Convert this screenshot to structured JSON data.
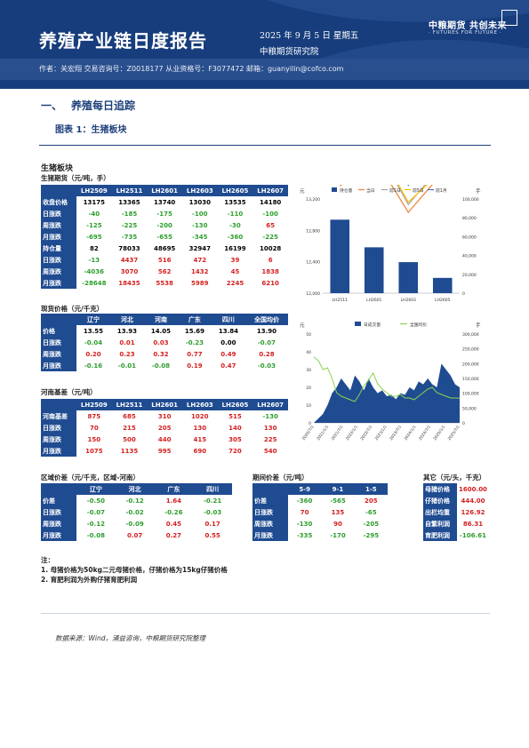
{
  "header": {
    "title": "养殖产业链日度报告",
    "date": "2025 年 9 月 5 日 星期五",
    "institute": "中粮期货研究院",
    "logo_cn": "中粮期货  共创未来",
    "logo_en": "· FUTURES FOR FUTURE ·",
    "authors": "作者：关宏翔    交易咨询号：Z0018177  从业资格号：F3077472    邮箱：guanyilin@cofco.com"
  },
  "section": {
    "number": "一、",
    "title": "养殖每日追踪"
  },
  "figure_title": "图表 1：生猪板块",
  "panel_title": "生猪板块",
  "futures": {
    "subtitle": "生猪期货（元/吨，手）",
    "columns": [
      "LH2509",
      "LH2511",
      "LH2601",
      "LH2603",
      "LH2605",
      "LH2607"
    ],
    "rows": [
      {
        "label": "收盘价格",
        "values": [
          "13175",
          "13365",
          "13740",
          "13030",
          "13535",
          "14180"
        ],
        "colors": [
          "",
          "",
          "",
          "",
          "",
          ""
        ]
      },
      {
        "label": "日涨跌",
        "values": [
          "-40",
          "-185",
          "-175",
          "-100",
          "-110",
          "-100"
        ],
        "colors": [
          "g",
          "g",
          "g",
          "g",
          "g",
          "g"
        ]
      },
      {
        "label": "周涨跌",
        "values": [
          "-125",
          "-225",
          "-200",
          "-130",
          "-30",
          "65"
        ],
        "colors": [
          "g",
          "g",
          "g",
          "g",
          "g",
          "r"
        ]
      },
      {
        "label": "月涨跌",
        "values": [
          "-695",
          "-735",
          "-655",
          "-345",
          "-360",
          "-225"
        ],
        "colors": [
          "g",
          "g",
          "g",
          "g",
          "g",
          "g"
        ]
      },
      {
        "label": "持仓量",
        "values": [
          "82",
          "78033",
          "48695",
          "32947",
          "16199",
          "10028"
        ],
        "colors": [
          "",
          "",
          "",
          "",
          "",
          ""
        ]
      },
      {
        "label": "日涨跌",
        "values": [
          "-13",
          "4437",
          "516",
          "472",
          "39",
          "6"
        ],
        "colors": [
          "g",
          "r",
          "r",
          "r",
          "r",
          "r"
        ]
      },
      {
        "label": "周涨跌",
        "values": [
          "-4036",
          "3070",
          "562",
          "1432",
          "45",
          "1838"
        ],
        "colors": [
          "g",
          "r",
          "r",
          "r",
          "r",
          "r"
        ]
      },
      {
        "label": "月涨跌",
        "values": [
          "-28648",
          "18435",
          "5538",
          "5989",
          "2245",
          "6210"
        ],
        "colors": [
          "g",
          "r",
          "r",
          "r",
          "r",
          "r"
        ]
      }
    ]
  },
  "spot": {
    "subtitle": "现货价格（元/千克）",
    "columns": [
      "辽宁",
      "河北",
      "河南",
      "广东",
      "四川",
      "全国均价"
    ],
    "rows": [
      {
        "label": "价格",
        "values": [
          "13.55",
          "13.93",
          "14.05",
          "15.69",
          "13.84",
          "13.90"
        ],
        "colors": [
          "",
          "",
          "",
          "",
          "",
          ""
        ]
      },
      {
        "label": "日涨跌",
        "values": [
          "-0.04",
          "0.01",
          "0.03",
          "-0.23",
          "0.00",
          "-0.07"
        ],
        "colors": [
          "g",
          "r",
          "r",
          "g",
          "",
          "g"
        ]
      },
      {
        "label": "周涨跌",
        "values": [
          "0.20",
          "0.23",
          "0.32",
          "0.77",
          "0.49",
          "0.28"
        ],
        "colors": [
          "r",
          "r",
          "r",
          "r",
          "r",
          "r"
        ]
      },
      {
        "label": "月涨跌",
        "values": [
          "-0.16",
          "-0.01",
          "-0.08",
          "0.19",
          "0.47",
          "-0.03"
        ],
        "colors": [
          "g",
          "g",
          "g",
          "r",
          "r",
          "g"
        ]
      }
    ]
  },
  "basis": {
    "subtitle": "河南基差（元/吨）",
    "columns": [
      "LH2509",
      "LH2511",
      "LH2601",
      "LH2603",
      "LH2605",
      "LH2607"
    ],
    "rows": [
      {
        "label": "河南基差",
        "values": [
          "875",
          "685",
          "310",
          "1020",
          "515",
          "-130"
        ],
        "colors": [
          "r",
          "r",
          "r",
          "r",
          "r",
          "g"
        ]
      },
      {
        "label": "日涨跌",
        "values": [
          "70",
          "215",
          "205",
          "130",
          "140",
          "130"
        ],
        "colors": [
          "r",
          "r",
          "r",
          "r",
          "r",
          "r"
        ]
      },
      {
        "label": "周涨跌",
        "values": [
          "150",
          "500",
          "440",
          "415",
          "305",
          "225"
        ],
        "colors": [
          "r",
          "r",
          "r",
          "r",
          "r",
          "r"
        ]
      },
      {
        "label": "月涨跌",
        "values": [
          "1075",
          "1135",
          "995",
          "690",
          "720",
          "540"
        ],
        "colors": [
          "r",
          "r",
          "r",
          "r",
          "r",
          "r"
        ]
      }
    ]
  },
  "regional": {
    "subtitle": "区域价差（元/千克，区域-河南）",
    "columns": [
      "辽宁",
      "河北",
      "广东",
      "四川"
    ],
    "rows": [
      {
        "label": "价差",
        "values": [
          "-0.50",
          "-0.12",
          "1.64",
          "-0.21"
        ],
        "colors": [
          "g",
          "g",
          "r",
          "g"
        ]
      },
      {
        "label": "日涨跌",
        "values": [
          "-0.07",
          "-0.02",
          "-0.26",
          "-0.03"
        ],
        "colors": [
          "g",
          "g",
          "g",
          "g"
        ]
      },
      {
        "label": "周涨跌",
        "values": [
          "-0.12",
          "-0.09",
          "0.45",
          "0.17"
        ],
        "colors": [
          "g",
          "g",
          "r",
          "r"
        ]
      },
      {
        "label": "月涨跌",
        "values": [
          "-0.08",
          "0.07",
          "0.27",
          "0.55"
        ],
        "colors": [
          "g",
          "r",
          "r",
          "r"
        ]
      }
    ]
  },
  "spread": {
    "subtitle": "期间价差（元/吨）",
    "columns": [
      "5-9",
      "9-1",
      "1-5"
    ],
    "rows": [
      {
        "label": "价差",
        "values": [
          "-360",
          "-565",
          "205"
        ],
        "colors": [
          "g",
          "g",
          "r"
        ]
      },
      {
        "label": "日涨跌",
        "values": [
          "70",
          "135",
          "-65"
        ],
        "colors": [
          "r",
          "r",
          "g"
        ]
      },
      {
        "label": "周涨跌",
        "values": [
          "-130",
          "90",
          "-205"
        ],
        "colors": [
          "g",
          "r",
          "g"
        ]
      },
      {
        "label": "月涨跌",
        "values": [
          "-335",
          "-170",
          "-295"
        ],
        "colors": [
          "g",
          "g",
          "g"
        ]
      }
    ]
  },
  "other": {
    "subtitle": "其它（元/头，千克）",
    "rows": [
      {
        "label": "母猪价格",
        "value": "1600.00",
        "color": "r"
      },
      {
        "label": "仔猪价格",
        "value": "444.00",
        "color": "r"
      },
      {
        "label": "出栏均重",
        "value": "126.92",
        "color": "r"
      },
      {
        "label": "自繁利润",
        "value": "86.31",
        "color": "r"
      },
      {
        "label": "育肥利润",
        "value": "-106.61",
        "color": "g"
      }
    ]
  },
  "notes": {
    "title": "注：",
    "lines": [
      "1. 母猪价格为50kg二元母猪价格，仔猪价格为15kg仔猪价格",
      "2. 育肥利润为外购仔猪育肥利润"
    ]
  },
  "source": "数据来源：Wind，涌益咨询，中粮期货研究院整理",
  "colors": {
    "navy": "#1f4b91",
    "red": "#d62020",
    "green": "#2c9e2c"
  },
  "chart_data": [
    {
      "type": "bar",
      "title": "",
      "left_axis_label": "元",
      "right_axis_label": "手",
      "categories": [
        "LH2511",
        "LH2601",
        "LH2603",
        "LH2605"
      ],
      "ylim": [
        12000,
        13200
      ],
      "y2lim": [
        0,
        100000
      ],
      "y_ticks": [
        "12,000",
        "12,400",
        "12,800",
        "13,200"
      ],
      "y2_ticks": [
        "0",
        "20,000",
        "40,000",
        "60,000",
        "80,000",
        "100,000"
      ],
      "legend": [
        "持仓量",
        "当日",
        "前1日",
        "前5日",
        "前1月"
      ],
      "legend_position": "top",
      "series": [
        {
          "name": "持仓量",
          "kind": "bar",
          "axis": "right",
          "values": [
            78033,
            48695,
            32947,
            16199
          ]
        },
        {
          "name": "当日",
          "kind": "line",
          "values": [
            13365,
            13740,
            13030,
            13535
          ]
        },
        {
          "name": "前1日",
          "kind": "line",
          "values": [
            13550,
            13915,
            13130,
            13645
          ]
        },
        {
          "name": "前5日",
          "kind": "line",
          "values": [
            13590,
            13940,
            13160,
            13565
          ]
        },
        {
          "name": "前1月",
          "kind": "line",
          "values": [
            14100,
            14395,
            13375,
            13895
          ]
        }
      ],
      "colors": {
        "持仓量": "#1f4b91",
        "当日": "#ed7d31",
        "前1日": "#a5a5a5",
        "前5日": "#ffc000",
        "前1月": "#4472c4"
      }
    },
    {
      "type": "area",
      "title": "",
      "left_axis_label": "元",
      "right_axis_label": "手",
      "legend": [
        "日成交量",
        "全国均价"
      ],
      "legend_position": "top",
      "ylim": [
        0,
        50
      ],
      "y_ticks": [
        "0",
        "10",
        "20",
        "30",
        "40",
        "50"
      ],
      "y2lim": [
        0,
        300000
      ],
      "y2_ticks": [
        "0",
        "50,000",
        "100,000",
        "150,000",
        "200,000",
        "250,000",
        "300,000"
      ],
      "x_ticks": [
        "2020/7/1",
        "2021/1/1",
        "2021/7/1",
        "2022/1/1",
        "2022/7/1",
        "2023/1/1",
        "2023/7/1",
        "2024/1/1",
        "2024/7/1",
        "2025/1/1",
        "2025/7/1"
      ],
      "series": [
        {
          "name": "全国均价",
          "kind": "line",
          "values": [
            37,
            35,
            30,
            31,
            25,
            17,
            15,
            14,
            13,
            12,
            16,
            21,
            24,
            28,
            22,
            19,
            17,
            15,
            15,
            16,
            14,
            14,
            13,
            15,
            17,
            19,
            20,
            17,
            16,
            15,
            14,
            14,
            13.9
          ]
        },
        {
          "name": "日成交量",
          "kind": "area",
          "axis": "right",
          "values": [
            0,
            15000,
            30000,
            60000,
            100000,
            120000,
            150000,
            130000,
            110000,
            160000,
            140000,
            110000,
            150000,
            120000,
            100000,
            110000,
            90000,
            95000,
            80000,
            100000,
            95000,
            120000,
            110000,
            140000,
            130000,
            150000,
            130000,
            120000,
            200000,
            180000,
            160000,
            130000,
            120000
          ]
        }
      ],
      "colors": {
        "日成交量": "#1f4b91",
        "全国均价": "#8fd14f"
      }
    }
  ]
}
